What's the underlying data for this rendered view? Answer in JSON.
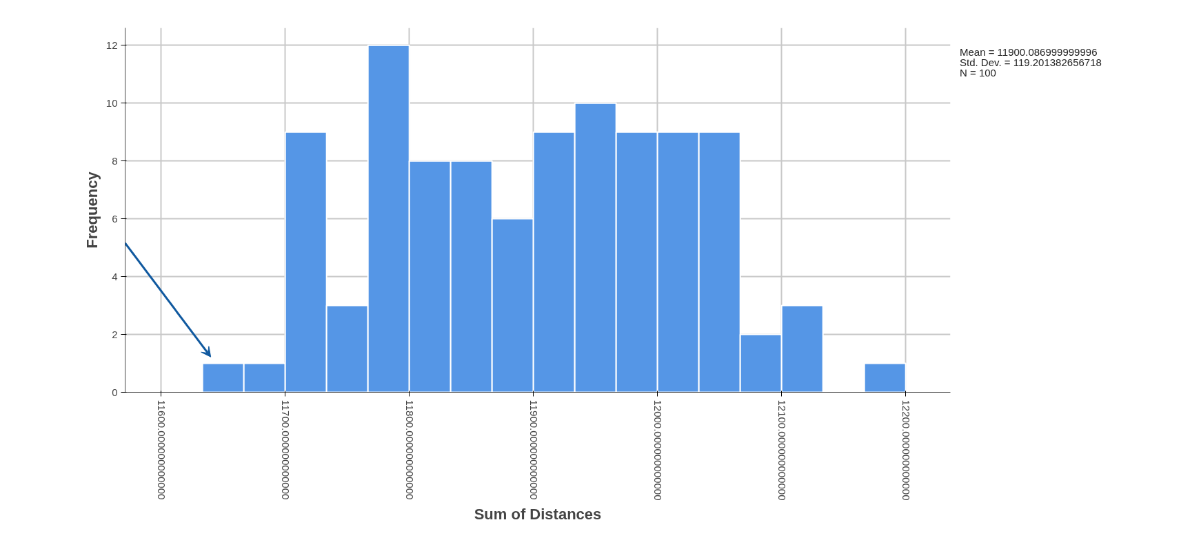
{
  "chart_data": {
    "type": "histogram",
    "xlabel": "Sum of Distances",
    "ylabel": "Frequency",
    "bins": [
      11633.33,
      11666.67,
      11700,
      11733.33,
      11766.67,
      11800,
      11833.33,
      11866.67,
      11900,
      11933.33,
      11966.67,
      12000,
      12033.33,
      12066.67,
      12100,
      12133.33,
      12166.67,
      12200
    ],
    "values": [
      1,
      1,
      9,
      3,
      12,
      8,
      8,
      6,
      9,
      10,
      9,
      9,
      9,
      2,
      3,
      0,
      1
    ],
    "color": "#5596e6",
    "xlim": [
      11571,
      12236
    ],
    "ylim": [
      0,
      12.6
    ],
    "xticks": [
      {
        "value": 11600,
        "label": "11600.000000000000"
      },
      {
        "value": 11700,
        "label": "11700.000000000000"
      },
      {
        "value": 11800,
        "label": "11800.000000000000"
      },
      {
        "value": 11900,
        "label": "11900.000000000000"
      },
      {
        "value": 12000,
        "label": "12000.000000000000"
      },
      {
        "value": 12100,
        "label": "12100.000000000000"
      },
      {
        "value": 12200,
        "label": "12200.000000000000"
      }
    ],
    "yticks": [
      0,
      2,
      4,
      6,
      8,
      10,
      12
    ],
    "grid": true,
    "annotations": [
      "Mean = 11900.086999999996",
      "Std. Dev. = 119.201382656718",
      "N = 100"
    ]
  }
}
